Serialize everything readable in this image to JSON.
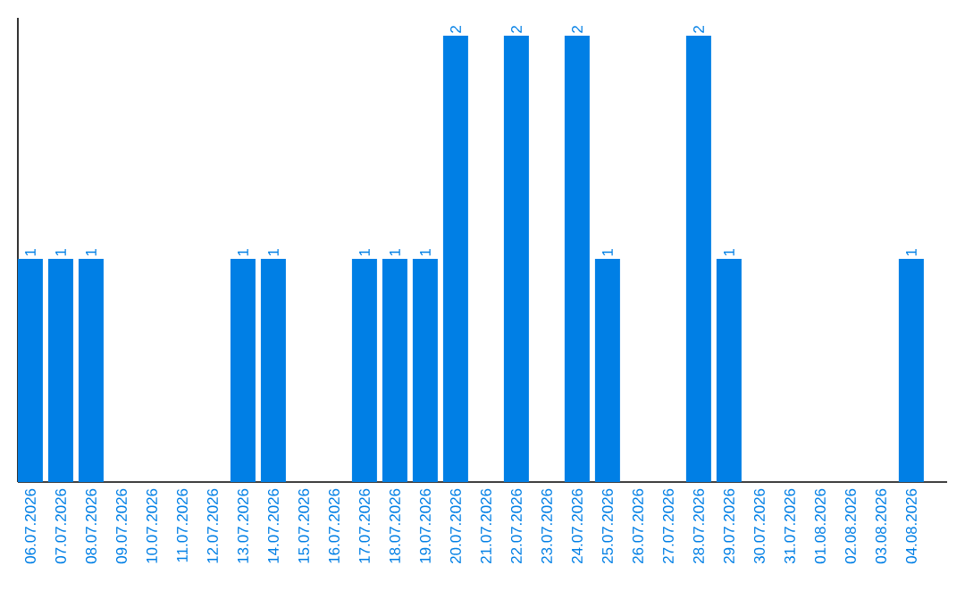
{
  "chart_data": {
    "type": "bar",
    "categories": [
      "06.07.2026",
      "07.07.2026",
      "08.07.2026",
      "09.07.2026",
      "10.07.2026",
      "11.07.2026",
      "12.07.2026",
      "13.07.2026",
      "14.07.2026",
      "15.07.2026",
      "16.07.2026",
      "17.07.2026",
      "18.07.2026",
      "19.07.2026",
      "20.07.2026",
      "21.07.2026",
      "22.07.2026",
      "23.07.2026",
      "24.07.2026",
      "25.07.2026",
      "26.07.2026",
      "27.07.2026",
      "28.07.2026",
      "29.07.2026",
      "30.07.2026",
      "31.07.2026",
      "01.08.2026",
      "02.08.2026",
      "03.08.2026",
      "04.08.2026"
    ],
    "values": [
      1,
      1,
      1,
      0,
      0,
      0,
      0,
      1,
      1,
      0,
      0,
      1,
      1,
      1,
      2,
      0,
      2,
      0,
      2,
      1,
      0,
      0,
      2,
      1,
      0,
      0,
      0,
      0,
      0,
      1
    ],
    "value_labels": [
      "1",
      "1",
      "1",
      null,
      null,
      null,
      null,
      "1",
      "1",
      null,
      null,
      "1",
      "1",
      "1",
      "2",
      null,
      "2",
      null,
      "2",
      "1",
      null,
      null,
      "2",
      "1",
      null,
      null,
      null,
      null,
      null,
      "1"
    ],
    "color": "#007fe5",
    "tick_labels": "x",
    "grid": false
  }
}
